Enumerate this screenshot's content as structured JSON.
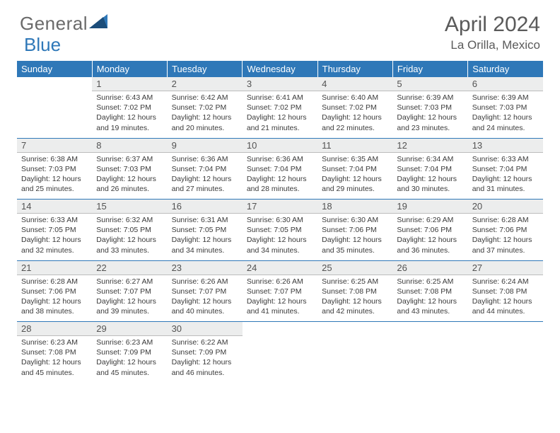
{
  "brand": {
    "name1": "General",
    "name2": "Blue"
  },
  "title": "April 2024",
  "location": "La Orilla, Mexico",
  "colors": {
    "header_bg": "#2f78b8",
    "header_fg": "#ffffff",
    "daynum_bg": "#eceded",
    "sep": "#2f78b8",
    "text": "#3a3a3a"
  },
  "day_names": [
    "Sunday",
    "Monday",
    "Tuesday",
    "Wednesday",
    "Thursday",
    "Friday",
    "Saturday"
  ],
  "weeks": [
    [
      null,
      {
        "n": "1",
        "sr": "6:43 AM",
        "ss": "7:02 PM",
        "dl": "12 hours and 19 minutes."
      },
      {
        "n": "2",
        "sr": "6:42 AM",
        "ss": "7:02 PM",
        "dl": "12 hours and 20 minutes."
      },
      {
        "n": "3",
        "sr": "6:41 AM",
        "ss": "7:02 PM",
        "dl": "12 hours and 21 minutes."
      },
      {
        "n": "4",
        "sr": "6:40 AM",
        "ss": "7:02 PM",
        "dl": "12 hours and 22 minutes."
      },
      {
        "n": "5",
        "sr": "6:39 AM",
        "ss": "7:03 PM",
        "dl": "12 hours and 23 minutes."
      },
      {
        "n": "6",
        "sr": "6:39 AM",
        "ss": "7:03 PM",
        "dl": "12 hours and 24 minutes."
      }
    ],
    [
      {
        "n": "7",
        "sr": "6:38 AM",
        "ss": "7:03 PM",
        "dl": "12 hours and 25 minutes."
      },
      {
        "n": "8",
        "sr": "6:37 AM",
        "ss": "7:03 PM",
        "dl": "12 hours and 26 minutes."
      },
      {
        "n": "9",
        "sr": "6:36 AM",
        "ss": "7:04 PM",
        "dl": "12 hours and 27 minutes."
      },
      {
        "n": "10",
        "sr": "6:36 AM",
        "ss": "7:04 PM",
        "dl": "12 hours and 28 minutes."
      },
      {
        "n": "11",
        "sr": "6:35 AM",
        "ss": "7:04 PM",
        "dl": "12 hours and 29 minutes."
      },
      {
        "n": "12",
        "sr": "6:34 AM",
        "ss": "7:04 PM",
        "dl": "12 hours and 30 minutes."
      },
      {
        "n": "13",
        "sr": "6:33 AM",
        "ss": "7:04 PM",
        "dl": "12 hours and 31 minutes."
      }
    ],
    [
      {
        "n": "14",
        "sr": "6:33 AM",
        "ss": "7:05 PM",
        "dl": "12 hours and 32 minutes."
      },
      {
        "n": "15",
        "sr": "6:32 AM",
        "ss": "7:05 PM",
        "dl": "12 hours and 33 minutes."
      },
      {
        "n": "16",
        "sr": "6:31 AM",
        "ss": "7:05 PM",
        "dl": "12 hours and 34 minutes."
      },
      {
        "n": "17",
        "sr": "6:30 AM",
        "ss": "7:05 PM",
        "dl": "12 hours and 34 minutes."
      },
      {
        "n": "18",
        "sr": "6:30 AM",
        "ss": "7:06 PM",
        "dl": "12 hours and 35 minutes."
      },
      {
        "n": "19",
        "sr": "6:29 AM",
        "ss": "7:06 PM",
        "dl": "12 hours and 36 minutes."
      },
      {
        "n": "20",
        "sr": "6:28 AM",
        "ss": "7:06 PM",
        "dl": "12 hours and 37 minutes."
      }
    ],
    [
      {
        "n": "21",
        "sr": "6:28 AM",
        "ss": "7:06 PM",
        "dl": "12 hours and 38 minutes."
      },
      {
        "n": "22",
        "sr": "6:27 AM",
        "ss": "7:07 PM",
        "dl": "12 hours and 39 minutes."
      },
      {
        "n": "23",
        "sr": "6:26 AM",
        "ss": "7:07 PM",
        "dl": "12 hours and 40 minutes."
      },
      {
        "n": "24",
        "sr": "6:26 AM",
        "ss": "7:07 PM",
        "dl": "12 hours and 41 minutes."
      },
      {
        "n": "25",
        "sr": "6:25 AM",
        "ss": "7:08 PM",
        "dl": "12 hours and 42 minutes."
      },
      {
        "n": "26",
        "sr": "6:25 AM",
        "ss": "7:08 PM",
        "dl": "12 hours and 43 minutes."
      },
      {
        "n": "27",
        "sr": "6:24 AM",
        "ss": "7:08 PM",
        "dl": "12 hours and 44 minutes."
      }
    ],
    [
      {
        "n": "28",
        "sr": "6:23 AM",
        "ss": "7:08 PM",
        "dl": "12 hours and 45 minutes."
      },
      {
        "n": "29",
        "sr": "6:23 AM",
        "ss": "7:09 PM",
        "dl": "12 hours and 45 minutes."
      },
      {
        "n": "30",
        "sr": "6:22 AM",
        "ss": "7:09 PM",
        "dl": "12 hours and 46 minutes."
      },
      null,
      null,
      null,
      null
    ]
  ],
  "labels": {
    "sunrise": "Sunrise:",
    "sunset": "Sunset:",
    "daylight": "Daylight:"
  }
}
